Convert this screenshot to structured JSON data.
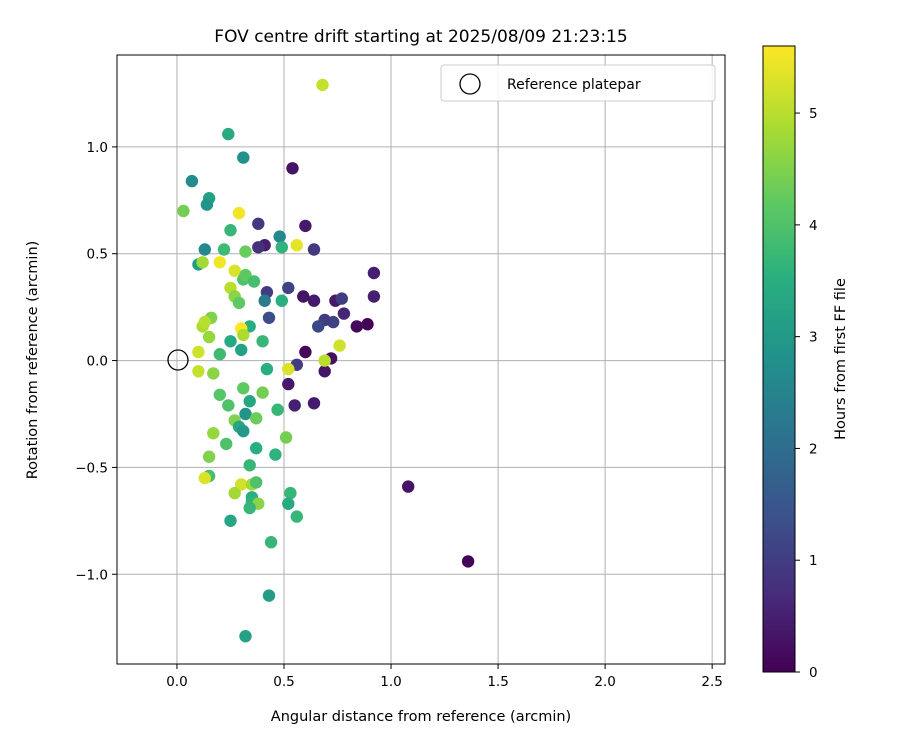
{
  "chart_data": {
    "type": "scatter",
    "title": "FOV centre drift starting at 2025/08/09 21:23:15",
    "xlabel": "Angular distance from reference (arcmin)",
    "ylabel": "Rotation from reference (arcmin)",
    "xlim": [
      -0.28,
      2.56
    ],
    "ylim": [
      -1.42,
      1.43
    ],
    "xticks": [
      "0.0",
      "0.5",
      "1.0",
      "1.5",
      "2.0",
      "2.5"
    ],
    "xtick_values": [
      0,
      0.5,
      1.0,
      1.5,
      2.0,
      2.5
    ],
    "yticks": [
      "−1.0",
      "−0.5",
      "0.0",
      "0.5",
      "1.0"
    ],
    "ytick_values": [
      -1.0,
      -0.5,
      0.0,
      0.5,
      1.0
    ],
    "grid": true,
    "legend": {
      "placement": "top-right",
      "entries": [
        "Reference platepar"
      ]
    },
    "reference_point": {
      "x": 0.0,
      "y": 0.0
    },
    "colorbar": {
      "label": "Hours from first FF file",
      "colormap": "viridis",
      "range": [
        0,
        5.6
      ],
      "ticks": [
        "0",
        "1",
        "2",
        "3",
        "4",
        "5"
      ],
      "tick_values": [
        0,
        1,
        2,
        3,
        4,
        5
      ]
    },
    "points": [
      {
        "x": 1.36,
        "y": -0.94,
        "h": 0.05
      },
      {
        "x": 1.08,
        "y": -0.59,
        "h": 0.3
      },
      {
        "x": 0.84,
        "y": 0.16,
        "h": 0.1
      },
      {
        "x": 0.89,
        "y": 0.17,
        "h": 0.05
      },
      {
        "x": 0.92,
        "y": 0.41,
        "h": 0.5
      },
      {
        "x": 0.92,
        "y": 0.3,
        "h": 0.5
      },
      {
        "x": 0.78,
        "y": 0.22,
        "h": 0.6
      },
      {
        "x": 0.74,
        "y": 0.28,
        "h": 0.4
      },
      {
        "x": 0.77,
        "y": 0.29,
        "h": 1.0
      },
      {
        "x": 0.73,
        "y": 0.18,
        "h": 1.1
      },
      {
        "x": 0.69,
        "y": 0.19,
        "h": 1.0
      },
      {
        "x": 0.66,
        "y": 0.16,
        "h": 1.2
      },
      {
        "x": 0.64,
        "y": 0.28,
        "h": 0.4
      },
      {
        "x": 0.59,
        "y": 0.3,
        "h": 0.3
      },
      {
        "x": 0.64,
        "y": 0.52,
        "h": 0.9
      },
      {
        "x": 0.6,
        "y": 0.63,
        "h": 0.4
      },
      {
        "x": 0.54,
        "y": 0.9,
        "h": 0.3
      },
      {
        "x": 0.52,
        "y": 0.34,
        "h": 1.1
      },
      {
        "x": 0.6,
        "y": 0.04,
        "h": 0.1
      },
      {
        "x": 0.56,
        "y": -0.02,
        "h": 1.0
      },
      {
        "x": 0.52,
        "y": -0.11,
        "h": 0.4
      },
      {
        "x": 0.55,
        "y": -0.21,
        "h": 0.5
      },
      {
        "x": 0.64,
        "y": -0.2,
        "h": 0.4
      },
      {
        "x": 0.69,
        "y": -0.05,
        "h": 0.3
      },
      {
        "x": 0.72,
        "y": 0.01,
        "h": 0.2
      },
      {
        "x": 0.69,
        "y": 0.0,
        "h": 5.0
      },
      {
        "x": 0.76,
        "y": 0.07,
        "h": 5.2
      },
      {
        "x": 0.68,
        "y": 1.29,
        "h": 5.1
      },
      {
        "x": 0.41,
        "y": 0.54,
        "h": 0.5
      },
      {
        "x": 0.38,
        "y": 0.53,
        "h": 0.8
      },
      {
        "x": 0.38,
        "y": 0.64,
        "h": 0.9
      },
      {
        "x": 0.42,
        "y": 0.32,
        "h": 1.0
      },
      {
        "x": 0.43,
        "y": 0.2,
        "h": 1.3
      },
      {
        "x": 0.41,
        "y": 0.28,
        "h": 2.3
      },
      {
        "x": 0.48,
        "y": 0.58,
        "h": 2.6
      },
      {
        "x": 0.49,
        "y": 0.53,
        "h": 3.6
      },
      {
        "x": 0.56,
        "y": 0.54,
        "h": 5.4
      },
      {
        "x": 0.49,
        "y": 0.28,
        "h": 3.5
      },
      {
        "x": 0.52,
        "y": -0.04,
        "h": 5.3
      },
      {
        "x": 0.24,
        "y": 1.06,
        "h": 3.4
      },
      {
        "x": 0.31,
        "y": 0.95,
        "h": 2.8
      },
      {
        "x": 0.07,
        "y": 0.84,
        "h": 2.7
      },
      {
        "x": 0.15,
        "y": 0.76,
        "h": 3.2
      },
      {
        "x": 0.14,
        "y": 0.73,
        "h": 2.9
      },
      {
        "x": 0.03,
        "y": 0.7,
        "h": 4.4
      },
      {
        "x": 0.29,
        "y": 0.69,
        "h": 5.5
      },
      {
        "x": 0.25,
        "y": 0.61,
        "h": 3.7
      },
      {
        "x": 0.22,
        "y": 0.52,
        "h": 3.8
      },
      {
        "x": 0.13,
        "y": 0.52,
        "h": 2.6
      },
      {
        "x": 0.32,
        "y": 0.51,
        "h": 4.3
      },
      {
        "x": 0.1,
        "y": 0.45,
        "h": 3.1
      },
      {
        "x": 0.12,
        "y": 0.46,
        "h": 4.8
      },
      {
        "x": 0.2,
        "y": 0.46,
        "h": 5.5
      },
      {
        "x": 0.27,
        "y": 0.42,
        "h": 5.3
      },
      {
        "x": 0.31,
        "y": 0.38,
        "h": 4.0
      },
      {
        "x": 0.32,
        "y": 0.4,
        "h": 4.2
      },
      {
        "x": 0.36,
        "y": 0.37,
        "h": 3.9
      },
      {
        "x": 0.25,
        "y": 0.34,
        "h": 5.0
      },
      {
        "x": 0.27,
        "y": 0.3,
        "h": 4.6
      },
      {
        "x": 0.29,
        "y": 0.27,
        "h": 4.2
      },
      {
        "x": 0.16,
        "y": 0.2,
        "h": 4.5
      },
      {
        "x": 0.12,
        "y": 0.16,
        "h": 4.9
      },
      {
        "x": 0.13,
        "y": 0.18,
        "h": 5.0
      },
      {
        "x": 0.15,
        "y": 0.11,
        "h": 4.7
      },
      {
        "x": 0.34,
        "y": 0.16,
        "h": 3.5
      },
      {
        "x": 0.3,
        "y": 0.15,
        "h": 5.6
      },
      {
        "x": 0.31,
        "y": 0.12,
        "h": 4.9
      },
      {
        "x": 0.25,
        "y": 0.09,
        "h": 3.4
      },
      {
        "x": 0.3,
        "y": 0.05,
        "h": 3.2
      },
      {
        "x": 0.4,
        "y": 0.09,
        "h": 3.7
      },
      {
        "x": 0.2,
        "y": 0.03,
        "h": 3.8
      },
      {
        "x": 0.1,
        "y": 0.04,
        "h": 5.2
      },
      {
        "x": 0.1,
        "y": -0.05,
        "h": 5.1
      },
      {
        "x": 0.17,
        "y": -0.06,
        "h": 4.6
      },
      {
        "x": 0.42,
        "y": -0.04,
        "h": 3.5
      },
      {
        "x": 0.31,
        "y": -0.13,
        "h": 4.2
      },
      {
        "x": 0.4,
        "y": -0.15,
        "h": 4.4
      },
      {
        "x": 0.2,
        "y": -0.16,
        "h": 4.1
      },
      {
        "x": 0.34,
        "y": -0.19,
        "h": 3.3
      },
      {
        "x": 0.24,
        "y": -0.21,
        "h": 4.0
      },
      {
        "x": 0.47,
        "y": -0.23,
        "h": 3.7
      },
      {
        "x": 0.32,
        "y": -0.25,
        "h": 2.9
      },
      {
        "x": 0.37,
        "y": -0.27,
        "h": 4.3
      },
      {
        "x": 0.27,
        "y": -0.28,
        "h": 4.5
      },
      {
        "x": 0.29,
        "y": -0.31,
        "h": 3.3
      },
      {
        "x": 0.31,
        "y": -0.33,
        "h": 3.0
      },
      {
        "x": 0.17,
        "y": -0.34,
        "h": 4.7
      },
      {
        "x": 0.51,
        "y": -0.36,
        "h": 4.4
      },
      {
        "x": 0.23,
        "y": -0.39,
        "h": 4.0
      },
      {
        "x": 0.37,
        "y": -0.41,
        "h": 3.5
      },
      {
        "x": 0.46,
        "y": -0.44,
        "h": 3.6
      },
      {
        "x": 0.15,
        "y": -0.45,
        "h": 4.5
      },
      {
        "x": 0.34,
        "y": -0.49,
        "h": 3.7
      },
      {
        "x": 0.15,
        "y": -0.54,
        "h": 3.9
      },
      {
        "x": 0.13,
        "y": -0.55,
        "h": 5.3
      },
      {
        "x": 0.3,
        "y": -0.58,
        "h": 5.2
      },
      {
        "x": 0.35,
        "y": -0.58,
        "h": 4.8
      },
      {
        "x": 0.37,
        "y": -0.57,
        "h": 4.0
      },
      {
        "x": 0.27,
        "y": -0.62,
        "h": 4.8
      },
      {
        "x": 0.35,
        "y": -0.64,
        "h": 3.5
      },
      {
        "x": 0.53,
        "y": -0.62,
        "h": 3.7
      },
      {
        "x": 0.35,
        "y": -0.66,
        "h": 3.6
      },
      {
        "x": 0.38,
        "y": -0.67,
        "h": 4.6
      },
      {
        "x": 0.52,
        "y": -0.67,
        "h": 3.4
      },
      {
        "x": 0.34,
        "y": -0.69,
        "h": 3.7
      },
      {
        "x": 0.56,
        "y": -0.73,
        "h": 3.7
      },
      {
        "x": 0.25,
        "y": -0.75,
        "h": 3.3
      },
      {
        "x": 0.44,
        "y": -0.85,
        "h": 3.7
      },
      {
        "x": 0.43,
        "y": -1.1,
        "h": 3.1
      },
      {
        "x": 0.32,
        "y": -1.29,
        "h": 3.2
      }
    ]
  }
}
